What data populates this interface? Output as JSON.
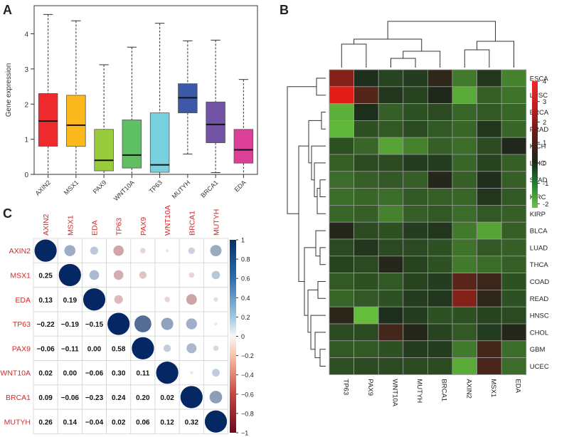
{
  "chart_data": [
    {
      "panel": "A",
      "type": "box",
      "ylabel": "Gene expression",
      "ylim": [
        0,
        4.8
      ],
      "yticks": [
        0,
        1,
        2,
        3,
        4
      ],
      "categories": [
        "AXIN2",
        "MSX1",
        "PAX9",
        "WNT10A",
        "TP63",
        "MUTYH",
        "BRCA1",
        "EDA"
      ],
      "colors": [
        "#ee2a2e",
        "#fbb91c",
        "#9acb3c",
        "#5fbf63",
        "#79d1df",
        "#3b59a8",
        "#7353a5",
        "#db3f97"
      ],
      "boxes": [
        {
          "min": 0.0,
          "q1": 0.8,
          "median": 1.52,
          "q3": 2.3,
          "max": 4.55
        },
        {
          "min": 0.0,
          "q1": 0.8,
          "median": 1.4,
          "q3": 2.25,
          "max": 4.37
        },
        {
          "min": 0.0,
          "q1": 0.1,
          "median": 0.4,
          "q3": 1.28,
          "max": 3.12
        },
        {
          "min": 0.0,
          "q1": 0.18,
          "median": 0.55,
          "q3": 1.55,
          "max": 3.62
        },
        {
          "min": 0.0,
          "q1": 0.06,
          "median": 0.27,
          "q3": 1.75,
          "max": 4.3
        },
        {
          "min": 0.58,
          "q1": 1.75,
          "median": 2.18,
          "q3": 2.58,
          "max": 3.8
        },
        {
          "min": 0.05,
          "q1": 0.9,
          "median": 1.42,
          "q3": 2.06,
          "max": 3.82
        },
        {
          "min": 0.0,
          "q1": 0.32,
          "median": 0.7,
          "q3": 1.28,
          "max": 2.7
        }
      ]
    },
    {
      "panel": "B",
      "type": "heatmap",
      "columns": [
        "TP63",
        "PAX9",
        "WNT10A",
        "MUTYH",
        "BRCA1",
        "AXIN2",
        "MSX1",
        "EDA"
      ],
      "rows": [
        "ESCA",
        "LUSC",
        "BRCA",
        "PRAD",
        "KICH",
        "LIHC",
        "STAD",
        "KIRC",
        "KIRP",
        "BLCA",
        "LUAD",
        "THCA",
        "COAD",
        "READ",
        "HNSC",
        "CHOL",
        "GBM",
        "UCEC"
      ],
      "values": [
        [
          2.0,
          -0.1,
          -0.4,
          -0.3,
          0.4,
          -1.2,
          -0.2,
          -1.3
        ],
        [
          3.8,
          1.1,
          -0.2,
          -0.4,
          0.1,
          -1.9,
          -0.8,
          -1.1
        ],
        [
          -2.0,
          -0.1,
          -0.8,
          -0.6,
          -0.5,
          -0.9,
          -0.7,
          -0.9
        ],
        [
          -2.1,
          -0.6,
          -0.7,
          -0.5,
          -0.7,
          -0.9,
          -0.2,
          -0.9
        ],
        [
          -0.6,
          -0.9,
          -1.8,
          -1.3,
          -0.8,
          -1.0,
          -0.5,
          0.1
        ],
        [
          -0.8,
          -0.5,
          -0.5,
          -0.3,
          -0.3,
          -0.9,
          -0.4,
          -0.8
        ],
        [
          -1.0,
          -0.8,
          -0.7,
          -0.8,
          0.2,
          -0.8,
          -0.1,
          -0.8
        ],
        [
          -1.0,
          -0.9,
          -1.0,
          -0.7,
          -0.8,
          -0.9,
          -0.2,
          -0.7
        ],
        [
          -0.9,
          -0.8,
          -1.3,
          -0.8,
          -0.7,
          -1.0,
          -0.7,
          -0.8
        ],
        [
          0.2,
          -0.5,
          -0.6,
          -0.3,
          -0.2,
          -1.2,
          -1.8,
          -0.8
        ],
        [
          -0.5,
          -0.2,
          -0.5,
          -0.5,
          -0.6,
          -1.1,
          -0.7,
          -0.8
        ],
        [
          -0.4,
          -0.5,
          0.2,
          -0.4,
          -0.6,
          -1.2,
          -1.0,
          -0.8
        ],
        [
          -0.7,
          -0.6,
          -0.7,
          -0.4,
          -0.3,
          1.2,
          0.6,
          -0.6
        ],
        [
          -0.9,
          -0.7,
          -0.6,
          -0.3,
          -0.2,
          2.0,
          0.4,
          -0.6
        ],
        [
          0.3,
          -2.2,
          -0.1,
          -0.3,
          -0.6,
          -0.6,
          -0.4,
          -0.5
        ],
        [
          -0.5,
          -0.5,
          0.8,
          0.2,
          -0.4,
          -0.7,
          -0.3,
          0.2
        ],
        [
          -0.7,
          -0.7,
          -0.6,
          -0.3,
          -0.3,
          -1.2,
          0.8,
          -1.0
        ],
        [
          -0.6,
          -0.5,
          -0.5,
          -0.5,
          -0.5,
          -1.9,
          0.9,
          -1.0
        ]
      ],
      "legend_ticks": [
        4,
        3,
        2,
        1,
        0,
        -1,
        -2
      ],
      "color_range": [
        -2.2,
        4
      ]
    },
    {
      "panel": "C",
      "type": "correlation-matrix",
      "labels": [
        "AXIN2",
        "MSX1",
        "EDA",
        "TP63",
        "PAX9",
        "WNT10A",
        "BRCA1",
        "MUTYH"
      ],
      "lower_text": [
        [],
        [
          "0.25"
        ],
        [
          "0.13",
          "0.19"
        ],
        [
          "−0.22",
          "−0.19",
          "−0.15"
        ],
        [
          "−0.06",
          "−0.11",
          "0.00",
          "0.58"
        ],
        [
          "0.02",
          "0.00",
          "−0.06",
          "0.30",
          "0.11"
        ],
        [
          "0.09",
          "−0.06",
          "−0.23",
          "0.24",
          "0.20",
          "0.02"
        ],
        [
          "0.26",
          "0.14",
          "−0.04",
          "0.02",
          "0.06",
          "0.12",
          "0.32"
        ]
      ],
      "matrix": [
        [
          1,
          0.25,
          0.13,
          -0.22,
          -0.06,
          0.02,
          0.09,
          0.26
        ],
        [
          0.25,
          1,
          0.19,
          -0.19,
          -0.11,
          0.0,
          -0.06,
          0.14
        ],
        [
          0.13,
          0.19,
          1,
          -0.15,
          0.0,
          -0.06,
          -0.23,
          -0.04
        ],
        [
          -0.22,
          -0.19,
          -0.15,
          1,
          0.58,
          0.3,
          0.24,
          0.02
        ],
        [
          -0.06,
          -0.11,
          0.0,
          0.58,
          1,
          0.11,
          0.2,
          0.06
        ],
        [
          0.02,
          0.0,
          -0.06,
          0.3,
          0.11,
          1,
          0.02,
          0.12
        ],
        [
          0.09,
          -0.06,
          -0.23,
          0.24,
          0.2,
          0.02,
          1,
          0.32
        ],
        [
          0.26,
          0.14,
          -0.04,
          0.02,
          0.06,
          0.12,
          0.32,
          1
        ]
      ],
      "legend_ticks": [
        "1",
        "0.8",
        "0.6",
        "0.4",
        "0.2",
        "0",
        "−0.2",
        "−0.4",
        "−0.6",
        "−0.8",
        "−1"
      ]
    }
  ],
  "panel_labels": [
    "A",
    "B",
    "C"
  ]
}
